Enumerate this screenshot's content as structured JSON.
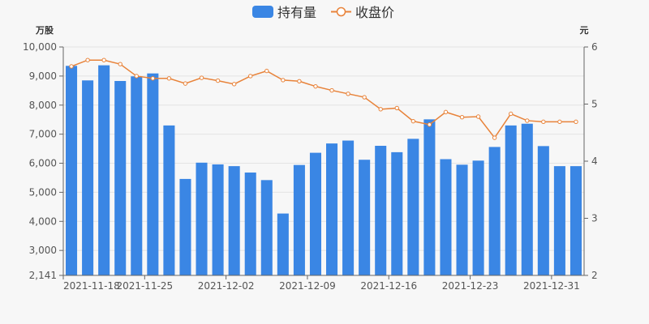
{
  "chart_data": {
    "type": "bar+line",
    "legend": {
      "placement": "top-center",
      "items": [
        {
          "label": "持有量",
          "kind": "bar",
          "color": "#3a86e4"
        },
        {
          "label": "收盘价",
          "kind": "line",
          "color": "#e8833a"
        }
      ]
    },
    "left_axis": {
      "unit": "万股",
      "min": 2141,
      "max": 10000,
      "ticks": [
        2141,
        3000,
        4000,
        5000,
        6000,
        7000,
        8000,
        9000,
        10000
      ],
      "tick_labels": [
        "2,141",
        "3,000",
        "4,000",
        "5,000",
        "6,000",
        "7,000",
        "8,000",
        "9,000",
        "10,000"
      ]
    },
    "right_axis": {
      "unit": "元",
      "min": 2,
      "max": 6,
      "ticks": [
        2,
        3,
        4,
        5,
        6
      ],
      "tick_labels": [
        "2",
        "3",
        "4",
        "5",
        "6"
      ]
    },
    "x_tick_labels": [
      {
        "index": 0,
        "label": "2021-11-18"
      },
      {
        "index": 5,
        "label": "2021-11-25"
      },
      {
        "index": 10,
        "label": "2021-12-02"
      },
      {
        "index": 15,
        "label": "2021-12-09"
      },
      {
        "index": 20,
        "label": "2021-12-16"
      },
      {
        "index": 25,
        "label": "2021-12-23"
      },
      {
        "index": 30,
        "label": "2021-12-31"
      }
    ],
    "categories": [
      "2021-11-18",
      "2021-11-19",
      "2021-11-22",
      "2021-11-23",
      "2021-11-24",
      "2021-11-25",
      "2021-11-26",
      "2021-11-29",
      "2021-11-30",
      "2021-12-01",
      "2021-12-02",
      "2021-12-03",
      "2021-12-06",
      "2021-12-07",
      "2021-12-08",
      "2021-12-09",
      "2021-12-10",
      "2021-12-13",
      "2021-12-14",
      "2021-12-15",
      "2021-12-16",
      "2021-12-17",
      "2021-12-20",
      "2021-12-21",
      "2021-12-22",
      "2021-12-23",
      "2021-12-24",
      "2021-12-27",
      "2021-12-28",
      "2021-12-29",
      "2021-12-30",
      "2021-12-31"
    ],
    "series": [
      {
        "name": "持有量",
        "type": "bar",
        "axis": "left",
        "color": "#3a86e4",
        "values": [
          9350,
          8850,
          9370,
          8830,
          8990,
          9090,
          7300,
          5460,
          6020,
          5960,
          5900,
          5680,
          5420,
          4270,
          5940,
          6360,
          6680,
          6780,
          6120,
          6600,
          6380,
          6840,
          7510,
          6140,
          5950,
          6090,
          6560,
          7300,
          7360,
          6590,
          5900,
          5900
        ]
      },
      {
        "name": "收盘价",
        "type": "line",
        "axis": "right",
        "color": "#e8833a",
        "values": [
          5.66,
          5.77,
          5.77,
          5.7,
          5.49,
          5.45,
          5.45,
          5.36,
          5.46,
          5.41,
          5.35,
          5.49,
          5.58,
          5.42,
          5.4,
          5.31,
          5.24,
          5.18,
          5.12,
          4.91,
          4.93,
          4.7,
          4.64,
          4.86,
          4.77,
          4.78,
          4.41,
          4.83,
          4.71,
          4.69,
          4.69,
          4.69
        ]
      }
    ]
  }
}
